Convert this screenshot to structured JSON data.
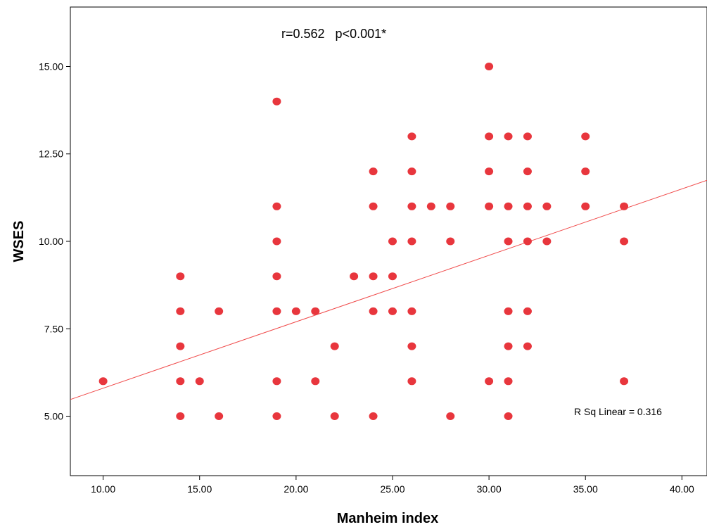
{
  "chart_data": {
    "type": "scatter",
    "title": "",
    "xlabel": "Manheim index",
    "ylabel": "WSES",
    "xlim": [
      8.3,
      41.3
    ],
    "ylim": [
      3.3,
      16.7
    ],
    "x_ticks": [
      "10.00",
      "15.00",
      "20.00",
      "25.00",
      "30.00",
      "35.00",
      "40.00"
    ],
    "y_ticks": [
      "5.00",
      "7.50",
      "10.00",
      "12.50",
      "15.00"
    ],
    "grid": false,
    "legend": "none",
    "annotations": {
      "correlation": "r=0.562   p<0.001*",
      "r_squared": "R Sq Linear = 0.316"
    },
    "fit_line": {
      "slope": 0.19,
      "intercept": 3.9
    },
    "colors": {
      "points": "#e8363d",
      "fit_line": "#f04a4a",
      "axis": "#000000"
    },
    "points": [
      [
        10,
        6
      ],
      [
        14,
        9
      ],
      [
        14,
        8
      ],
      [
        14,
        7
      ],
      [
        14,
        6
      ],
      [
        14,
        5
      ],
      [
        15,
        6
      ],
      [
        16,
        8
      ],
      [
        16,
        5
      ],
      [
        19,
        14
      ],
      [
        19,
        11
      ],
      [
        19,
        10
      ],
      [
        19,
        9
      ],
      [
        19,
        8
      ],
      [
        19,
        6
      ],
      [
        19,
        5
      ],
      [
        20,
        8
      ],
      [
        21,
        8
      ],
      [
        21,
        6
      ],
      [
        22,
        7
      ],
      [
        22,
        5
      ],
      [
        23,
        9
      ],
      [
        24,
        12
      ],
      [
        24,
        11
      ],
      [
        24,
        9
      ],
      [
        24,
        8
      ],
      [
        24,
        5
      ],
      [
        25,
        10
      ],
      [
        25,
        9
      ],
      [
        25,
        8
      ],
      [
        26,
        13
      ],
      [
        26,
        12
      ],
      [
        26,
        11
      ],
      [
        26,
        10
      ],
      [
        26,
        8
      ],
      [
        26,
        7
      ],
      [
        26,
        6
      ],
      [
        27,
        11
      ],
      [
        28,
        11
      ],
      [
        28,
        10
      ],
      [
        28,
        5
      ],
      [
        30,
        15
      ],
      [
        30,
        13
      ],
      [
        30,
        12
      ],
      [
        30,
        11
      ],
      [
        30,
        6
      ],
      [
        31,
        13
      ],
      [
        31,
        11
      ],
      [
        31,
        10
      ],
      [
        31,
        8
      ],
      [
        31,
        7
      ],
      [
        31,
        6
      ],
      [
        31,
        5
      ],
      [
        32,
        13
      ],
      [
        32,
        12
      ],
      [
        32,
        11
      ],
      [
        32,
        10
      ],
      [
        32,
        8
      ],
      [
        32,
        7
      ],
      [
        33,
        11
      ],
      [
        33,
        10
      ],
      [
        35,
        13
      ],
      [
        35,
        12
      ],
      [
        35,
        11
      ],
      [
        37,
        11
      ],
      [
        37,
        10
      ],
      [
        37,
        6
      ]
    ]
  }
}
